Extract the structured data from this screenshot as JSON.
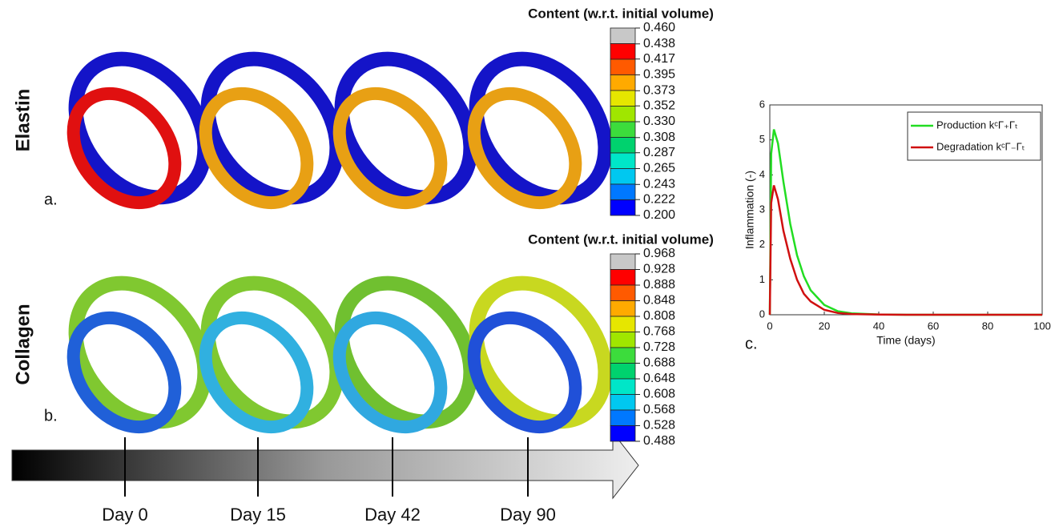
{
  "rows": [
    {
      "row_label": "Elastin",
      "panel_label": "a.",
      "colorbar": {
        "title": "Content (w.r.t. initial volume)",
        "colors": [
          "#c8c8c8",
          "#ff0000",
          "#ff5a00",
          "#ffaa00",
          "#e6e600",
          "#a0e600",
          "#3cdc3c",
          "#00d26e",
          "#00e6c8",
          "#00c8f0",
          "#0078ff",
          "#0000ff"
        ],
        "ticks": [
          {
            "value": 0.46,
            "label": "0.460"
          },
          0.438,
          0.417,
          0.395,
          0.373,
          0.352,
          {
            "value": 0.33,
            "label": "0.330"
          },
          0.308,
          0.287,
          0.265,
          0.243,
          0.222,
          {
            "value": 0.2,
            "label": "0.200"
          }
        ]
      }
    },
    {
      "row_label": "Collagen",
      "panel_label": "b.",
      "colorbar": {
        "title": "Content (w.r.t. initial volume)",
        "colors": [
          "#c8c8c8",
          "#ff0000",
          "#ff5a00",
          "#ffaa00",
          "#e6e600",
          "#a0e600",
          "#3cdc3c",
          "#00d26e",
          "#00e6c8",
          "#00c8f0",
          "#0078ff",
          "#0000ff"
        ],
        "ticks": [
          0.968,
          0.928,
          0.888,
          0.848,
          0.808,
          0.768,
          0.728,
          0.688,
          0.648,
          0.608,
          0.568,
          0.528,
          0.488
        ]
      }
    }
  ],
  "timeline": {
    "days": [
      "Day 0",
      "Day 15",
      "Day 42",
      "Day 90"
    ]
  },
  "chart_data": {
    "type": "line",
    "panel_label": "c.",
    "xlabel": "Time (days)",
    "ylabel": "Inflammation (-)",
    "x": [
      0,
      0.5,
      1.5,
      3,
      5,
      7.5,
      10,
      12.5,
      15,
      20,
      25,
      30,
      40,
      50,
      60,
      80,
      100
    ],
    "series": [
      {
        "name": "Production kᶜΓ₊Γₜ",
        "color": "#22dd22",
        "values": [
          0,
          4.6,
          5.3,
          4.9,
          3.8,
          2.6,
          1.7,
          1.1,
          0.7,
          0.28,
          0.1,
          0.04,
          0.01,
          0,
          0,
          0,
          0
        ]
      },
      {
        "name": "Degradation kᶜΓ₋Γₜ",
        "color": "#d01010",
        "values": [
          0,
          3.2,
          3.7,
          3.3,
          2.4,
          1.6,
          1.0,
          0.6,
          0.38,
          0.14,
          0.05,
          0.02,
          0.005,
          0,
          0,
          0,
          0
        ]
      }
    ],
    "xlim": [
      0,
      100
    ],
    "ylim": [
      0,
      6
    ],
    "xticks": [
      0,
      20,
      40,
      60,
      80,
      100
    ],
    "yticks": [
      0,
      1,
      2,
      3,
      4,
      5,
      6
    ],
    "legend": "upper right"
  }
}
